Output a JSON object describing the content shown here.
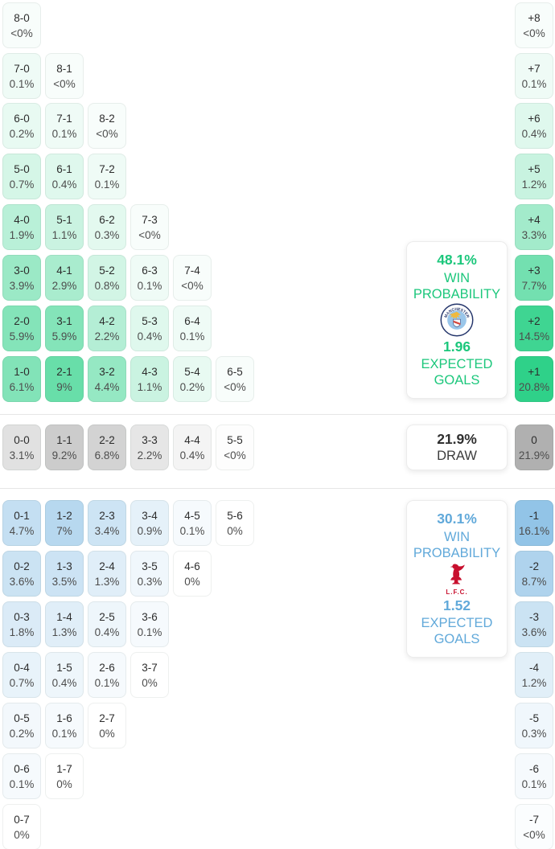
{
  "colors": {
    "home_accent": "#1cc77c",
    "home_cell_base": "#2fd189",
    "away_accent": "#61a9da",
    "away_cell_base": "#8fc2e6",
    "draw_cell_base": "#b0b0b0",
    "score_text": "#2d2d2d",
    "pct_text": "#4d4d4d",
    "divider": "#e6e6e6",
    "mancity_navy": "#24356b",
    "mancity_sky": "#9ac6ea",
    "mancity_gold": "#efb93f",
    "mancity_red": "#d6453c",
    "liverpool_red": "#c8102e"
  },
  "summary": {
    "home": {
      "win_probability": "48.1%",
      "win_label": "WIN PROBABILITY",
      "expected_goals": "1.96",
      "goals_label": "EXPECTED GOALS",
      "crest": "manchester-city-crest"
    },
    "draw": {
      "probability": "21.9%",
      "label": "DRAW"
    },
    "away": {
      "win_probability": "30.1%",
      "win_label": "WIN PROBABILITY",
      "expected_goals": "1.52",
      "goals_label": "EXPECTED GOALS",
      "crest": "liverpool-fc-crest",
      "crest_caption": "L.F.C."
    }
  },
  "chart_data": {
    "type": "heatmap",
    "description": "Correct-score probability matrix: home-win scorelines (green), draws (grey), away-win scorelines (blue), with goal-difference totals in the right column",
    "home_section": {
      "rows": [
        [
          {
            "score": "8-0",
            "pct": "<0%",
            "value": 0.02
          }
        ],
        [
          {
            "score": "7-0",
            "pct": "0.1%",
            "value": 0.1
          },
          {
            "score": "8-1",
            "pct": "<0%",
            "value": 0.02
          }
        ],
        [
          {
            "score": "6-0",
            "pct": "0.2%",
            "value": 0.2
          },
          {
            "score": "7-1",
            "pct": "0.1%",
            "value": 0.1
          },
          {
            "score": "8-2",
            "pct": "<0%",
            "value": 0.02
          }
        ],
        [
          {
            "score": "5-0",
            "pct": "0.7%",
            "value": 0.7
          },
          {
            "score": "6-1",
            "pct": "0.4%",
            "value": 0.4
          },
          {
            "score": "7-2",
            "pct": "0.1%",
            "value": 0.1
          }
        ],
        [
          {
            "score": "4-0",
            "pct": "1.9%",
            "value": 1.9
          },
          {
            "score": "5-1",
            "pct": "1.1%",
            "value": 1.1
          },
          {
            "score": "6-2",
            "pct": "0.3%",
            "value": 0.3
          },
          {
            "score": "7-3",
            "pct": "<0%",
            "value": 0.02
          }
        ],
        [
          {
            "score": "3-0",
            "pct": "3.9%",
            "value": 3.9
          },
          {
            "score": "4-1",
            "pct": "2.9%",
            "value": 2.9
          },
          {
            "score": "5-2",
            "pct": "0.8%",
            "value": 0.8
          },
          {
            "score": "6-3",
            "pct": "0.1%",
            "value": 0.1
          },
          {
            "score": "7-4",
            "pct": "<0%",
            "value": 0.02
          }
        ],
        [
          {
            "score": "2-0",
            "pct": "5.9%",
            "value": 5.9
          },
          {
            "score": "3-1",
            "pct": "5.9%",
            "value": 5.9
          },
          {
            "score": "4-2",
            "pct": "2.2%",
            "value": 2.2
          },
          {
            "score": "5-3",
            "pct": "0.4%",
            "value": 0.4
          },
          {
            "score": "6-4",
            "pct": "0.1%",
            "value": 0.1
          }
        ],
        [
          {
            "score": "1-0",
            "pct": "6.1%",
            "value": 6.1
          },
          {
            "score": "2-1",
            "pct": "9%",
            "value": 9
          },
          {
            "score": "3-2",
            "pct": "4.4%",
            "value": 4.4
          },
          {
            "score": "4-3",
            "pct": "1.1%",
            "value": 1.1
          },
          {
            "score": "5-4",
            "pct": "0.2%",
            "value": 0.2
          },
          {
            "score": "6-5",
            "pct": "<0%",
            "value": 0.02
          }
        ]
      ],
      "goal_diff": [
        {
          "label": "+8",
          "pct": "<0%",
          "value": 0.02
        },
        {
          "label": "+7",
          "pct": "0.1%",
          "value": 0.1
        },
        {
          "label": "+6",
          "pct": "0.4%",
          "value": 0.4
        },
        {
          "label": "+5",
          "pct": "1.2%",
          "value": 1.2
        },
        {
          "label": "+4",
          "pct": "3.3%",
          "value": 3.3
        },
        {
          "label": "+3",
          "pct": "7.7%",
          "value": 7.7
        },
        {
          "label": "+2",
          "pct": "14.5%",
          "value": 14.5
        },
        {
          "label": "+1",
          "pct": "20.8%",
          "value": 20.8
        }
      ]
    },
    "draw_section": {
      "row": [
        {
          "score": "0-0",
          "pct": "3.1%",
          "value": 3.1
        },
        {
          "score": "1-1",
          "pct": "9.2%",
          "value": 9.2
        },
        {
          "score": "2-2",
          "pct": "6.8%",
          "value": 6.8
        },
        {
          "score": "3-3",
          "pct": "2.2%",
          "value": 2.2
        },
        {
          "score": "4-4",
          "pct": "0.4%",
          "value": 0.4
        },
        {
          "score": "5-5",
          "pct": "<0%",
          "value": 0.02
        }
      ],
      "goal_diff": {
        "label": "0",
        "pct": "21.9%",
        "value": 21.9
      }
    },
    "away_section": {
      "rows": [
        [
          {
            "score": "0-1",
            "pct": "4.7%",
            "value": 4.7
          },
          {
            "score": "1-2",
            "pct": "7%",
            "value": 7
          },
          {
            "score": "2-3",
            "pct": "3.4%",
            "value": 3.4
          },
          {
            "score": "3-4",
            "pct": "0.9%",
            "value": 0.9
          },
          {
            "score": "4-5",
            "pct": "0.1%",
            "value": 0.1
          },
          {
            "score": "5-6",
            "pct": "0%",
            "value": 0
          }
        ],
        [
          {
            "score": "0-2",
            "pct": "3.6%",
            "value": 3.6
          },
          {
            "score": "1-3",
            "pct": "3.5%",
            "value": 3.5
          },
          {
            "score": "2-4",
            "pct": "1.3%",
            "value": 1.3
          },
          {
            "score": "3-5",
            "pct": "0.3%",
            "value": 0.3
          },
          {
            "score": "4-6",
            "pct": "0%",
            "value": 0
          }
        ],
        [
          {
            "score": "0-3",
            "pct": "1.8%",
            "value": 1.8
          },
          {
            "score": "1-4",
            "pct": "1.3%",
            "value": 1.3
          },
          {
            "score": "2-5",
            "pct": "0.4%",
            "value": 0.4
          },
          {
            "score": "3-6",
            "pct": "0.1%",
            "value": 0.1
          }
        ],
        [
          {
            "score": "0-4",
            "pct": "0.7%",
            "value": 0.7
          },
          {
            "score": "1-5",
            "pct": "0.4%",
            "value": 0.4
          },
          {
            "score": "2-6",
            "pct": "0.1%",
            "value": 0.1
          },
          {
            "score": "3-7",
            "pct": "0%",
            "value": 0
          }
        ],
        [
          {
            "score": "0-5",
            "pct": "0.2%",
            "value": 0.2
          },
          {
            "score": "1-6",
            "pct": "0.1%",
            "value": 0.1
          },
          {
            "score": "2-7",
            "pct": "0%",
            "value": 0
          }
        ],
        [
          {
            "score": "0-6",
            "pct": "0.1%",
            "value": 0.1
          },
          {
            "score": "1-7",
            "pct": "0%",
            "value": 0
          }
        ],
        [
          {
            "score": "0-7",
            "pct": "0%",
            "value": 0
          }
        ]
      ],
      "goal_diff": [
        {
          "label": "-1",
          "pct": "16.1%",
          "value": 16.1
        },
        {
          "label": "-2",
          "pct": "8.7%",
          "value": 8.7
        },
        {
          "label": "-3",
          "pct": "3.6%",
          "value": 3.6
        },
        {
          "label": "-4",
          "pct": "1.2%",
          "value": 1.2
        },
        {
          "label": "-5",
          "pct": "0.3%",
          "value": 0.3
        },
        {
          "label": "-6",
          "pct": "0.1%",
          "value": 0.1
        },
        {
          "label": "-7",
          "pct": "<0%",
          "value": 0.02
        }
      ]
    }
  }
}
